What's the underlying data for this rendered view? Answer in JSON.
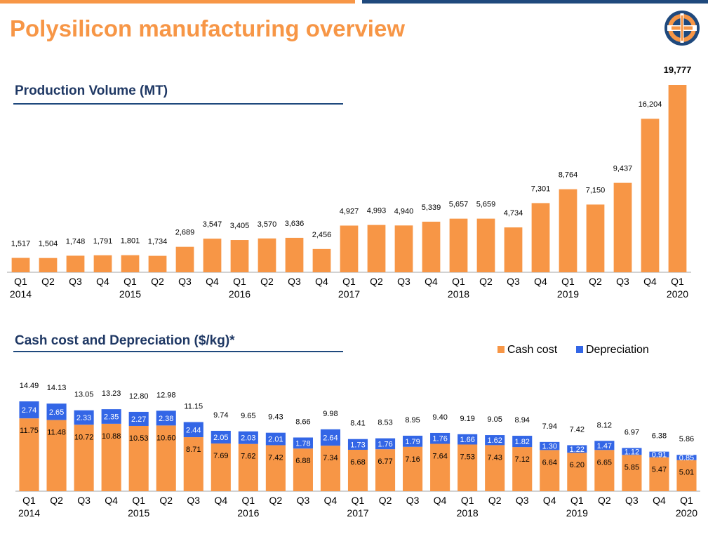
{
  "page": {
    "title": "Polysilicon manufacturing overview",
    "colors": {
      "orange": "#F79646",
      "blue": "#3366E6",
      "navy": "#1F497D",
      "title_orange": "#F79646"
    },
    "logo_icon": "company-logo-icon"
  },
  "chart_data": [
    {
      "type": "bar",
      "title": "Production Volume (MT)",
      "categories": [
        "Q1 2014",
        "Q2 2014",
        "Q3 2014",
        "Q4 2014",
        "Q1 2015",
        "Q2 2015",
        "Q3 2015",
        "Q4 2015",
        "Q1 2016",
        "Q2 2016",
        "Q3 2016",
        "Q4 2016",
        "Q1 2017",
        "Q2 2017",
        "Q3 2017",
        "Q4 2017",
        "Q1 2018",
        "Q2 2018",
        "Q3 2018",
        "Q4 2018",
        "Q1 2019",
        "Q2 2019",
        "Q3 2019",
        "Q4 2019",
        "Q1 2020"
      ],
      "quarter_labels": [
        "Q1",
        "Q2",
        "Q3",
        "Q4",
        "Q1",
        "Q2",
        "Q3",
        "Q4",
        "Q1",
        "Q2",
        "Q3",
        "Q4",
        "Q1",
        "Q2",
        "Q3",
        "Q4",
        "Q1",
        "Q2",
        "Q3",
        "Q4",
        "Q1",
        "Q2",
        "Q3",
        "Q4",
        "Q1"
      ],
      "year_labels": [
        "2014",
        "",
        "",
        "",
        "2015",
        "",
        "",
        "",
        "2016",
        "",
        "",
        "",
        "2017",
        "",
        "",
        "",
        "2018",
        "",
        "",
        "",
        "2019",
        "",
        "",
        "",
        "2020"
      ],
      "values": [
        1517,
        1504,
        1748,
        1791,
        1801,
        1734,
        2689,
        3547,
        3405,
        3570,
        3636,
        2456,
        4927,
        4993,
        4940,
        5339,
        5657,
        5659,
        4734,
        7301,
        8764,
        7150,
        9437,
        16204,
        19777
      ],
      "value_labels": [
        "1,517",
        "1,504",
        "1,748",
        "1,791",
        "1,801",
        "1,734",
        "2,689",
        "3,547",
        "3,405",
        "3,570",
        "3,636",
        "2,456",
        "4,927",
        "4,993",
        "4,940",
        "5,339",
        "5,657",
        "5,659",
        "4,734",
        "7,301",
        "8,764",
        "7,150",
        "9,437",
        "16,204",
        "19,777"
      ],
      "highlight_last_label_bold": true,
      "bar_color": "#F79646",
      "ylim": [
        0,
        20000
      ],
      "grid": false,
      "legend": "none"
    },
    {
      "type": "bar",
      "stacked": true,
      "title": "Cash cost and Depreciation ($/kg)*",
      "categories": [
        "Q1 2014",
        "Q2 2014",
        "Q3 2014",
        "Q4 2014",
        "Q1 2015",
        "Q2 2015",
        "Q3 2015",
        "Q4 2015",
        "Q1 2016",
        "Q2 2016",
        "Q3 2016",
        "Q4 2016",
        "Q1 2017",
        "Q2 2017",
        "Q3 2017",
        "Q4 2017",
        "Q1 2018",
        "Q2 2018",
        "Q3 2018",
        "Q4 2018",
        "Q1 2019",
        "Q2 2019",
        "Q3 2019",
        "Q4 2019",
        "Q1 2020"
      ],
      "quarter_labels": [
        "Q1",
        "Q2",
        "Q3",
        "Q4",
        "Q1",
        "Q2",
        "Q3",
        "Q4",
        "Q1",
        "Q2",
        "Q3",
        "Q4",
        "Q1",
        "Q2",
        "Q3",
        "Q4",
        "Q1",
        "Q2",
        "Q3",
        "Q4",
        "Q1",
        "Q2",
        "Q3",
        "Q4",
        "Q1"
      ],
      "year_labels": [
        "2014",
        "",
        "",
        "",
        "2015",
        "",
        "",
        "",
        "2016",
        "",
        "",
        "",
        "2017",
        "",
        "",
        "",
        "2018",
        "",
        "",
        "",
        "2019",
        "",
        "",
        "",
        "2020"
      ],
      "series": [
        {
          "name": "Cash cost",
          "color": "#F79646",
          "values": [
            11.75,
            11.48,
            10.72,
            10.88,
            10.53,
            10.6,
            8.71,
            7.69,
            7.62,
            7.42,
            6.88,
            7.34,
            6.68,
            6.77,
            7.16,
            7.64,
            7.53,
            7.43,
            7.12,
            6.64,
            6.2,
            6.65,
            5.85,
            5.47,
            5.01
          ],
          "labels": [
            "11.75",
            "11.48",
            "10.72",
            "10.88",
            "10.53",
            "10.60",
            "8.71",
            "7.69",
            "7.62",
            "7.42",
            "6.88",
            "7.34",
            "6.68",
            "6.77",
            "7.16",
            "7.64",
            "7.53",
            "7.43",
            "7.12",
            "6.64",
            "6.20",
            "6.65",
            "5.85",
            "5.47",
            "5.01"
          ]
        },
        {
          "name": "Depreciation",
          "color": "#3366E6",
          "values": [
            2.74,
            2.65,
            2.33,
            2.35,
            2.27,
            2.38,
            2.44,
            2.05,
            2.03,
            2.01,
            1.78,
            2.64,
            1.73,
            1.76,
            1.79,
            1.76,
            1.66,
            1.62,
            1.82,
            1.3,
            1.22,
            1.47,
            1.12,
            0.91,
            0.85
          ],
          "labels": [
            "2.74",
            "2.65",
            "2.33",
            "2.35",
            "2.27",
            "2.38",
            "2.44",
            "2.05",
            "2.03",
            "2.01",
            "1.78",
            "2.64",
            "1.73",
            "1.76",
            "1.79",
            "1.76",
            "1.66",
            "1.62",
            "1.82",
            "1.30",
            "1.22",
            "1.47",
            "1.12",
            "0.91",
            "0.85"
          ]
        }
      ],
      "totals": [
        14.49,
        14.13,
        13.05,
        13.23,
        12.8,
        12.98,
        11.15,
        9.74,
        9.65,
        9.43,
        8.66,
        9.98,
        8.41,
        8.53,
        8.95,
        9.4,
        9.19,
        9.05,
        8.94,
        7.94,
        7.42,
        8.12,
        6.97,
        6.38,
        5.86
      ],
      "total_labels": [
        "14.49",
        "14.13",
        "13.05",
        "13.23",
        "12.80",
        "12.98",
        "11.15",
        "9.74",
        "9.65",
        "9.43",
        "8.66",
        "9.98",
        "8.41",
        "8.53",
        "8.95",
        "9.40",
        "9.19",
        "9.05",
        "8.94",
        "7.94",
        "7.42",
        "8.12",
        "6.97",
        "6.38",
        "5.86"
      ],
      "ylim": [
        0,
        16
      ],
      "grid": false,
      "legend": "top-right"
    }
  ]
}
